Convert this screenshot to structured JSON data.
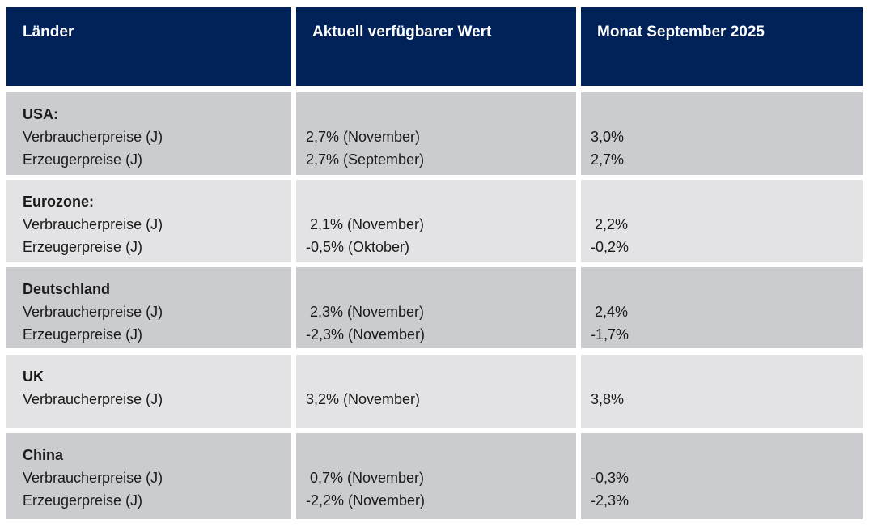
{
  "colors": {
    "header_bg": "#012159",
    "header_text": "#ffffff",
    "row_dark": "#cbccd0",
    "row_light": "#e3e3e5",
    "body_text": "#1a1a1a",
    "page_bg": "#ffffff"
  },
  "table": {
    "headers": [
      "Länder",
      "Aktuell verfügbarer Wert",
      "Monat September 2025"
    ],
    "rows": [
      {
        "country": "USA:",
        "labels": [
          "Verbraucherpreise (J)",
          "Erzeugerpreise (J)"
        ],
        "current": [
          "2,7% (November)",
          "2,7% (September)"
        ],
        "september": [
          "3,0%",
          "2,7%"
        ]
      },
      {
        "country": "Eurozone:",
        "labels": [
          "Verbraucherpreise (J)",
          "Erzeugerpreise (J)"
        ],
        "current": [
          " 2,1% (November)",
          "-0,5% (Oktober)"
        ],
        "september": [
          " 2,2%",
          "-0,2%"
        ]
      },
      {
        "country": "Deutschland",
        "labels": [
          "Verbraucherpreise (J)",
          "Erzeugerpreise (J)"
        ],
        "current": [
          " 2,3% (November)",
          "-2,3% (November)"
        ],
        "september": [
          " 2,4%",
          "-1,7%"
        ]
      },
      {
        "country": "UK",
        "labels": [
          "Verbraucherpreise (J)"
        ],
        "current": [
          "3,2% (November)"
        ],
        "september": [
          "3,8%"
        ]
      },
      {
        "country": "China",
        "labels": [
          "Verbraucherpreise (J)",
          "Erzeugerpreise (J)"
        ],
        "current": [
          " 0,7% (November)",
          "-2,2% (November)"
        ],
        "september": [
          "-0,3%",
          "-2,3%"
        ]
      }
    ]
  },
  "chart_data": {
    "type": "table",
    "columns": [
      "Länder",
      "Aktuell verfügbarer Wert",
      "Monat September 2025"
    ],
    "rows": [
      [
        "USA: Verbraucherpreise (J)",
        "2,7% (November)",
        "3,0%"
      ],
      [
        "USA: Erzeugerpreise (J)",
        "2,7% (September)",
        "2,7%"
      ],
      [
        "Eurozone: Verbraucherpreise (J)",
        "2,1% (November)",
        "2,2%"
      ],
      [
        "Eurozone: Erzeugerpreise (J)",
        "-0,5% (Oktober)",
        "-0,2%"
      ],
      [
        "Deutschland Verbraucherpreise (J)",
        "2,3% (November)",
        "2,4%"
      ],
      [
        "Deutschland Erzeugerpreise (J)",
        "-2,3% (November)",
        "-1,7%"
      ],
      [
        "UK Verbraucherpreise (J)",
        "3,2% (November)",
        "3,8%"
      ],
      [
        "China Verbraucherpreise (J)",
        "0,7% (November)",
        "-0,3%"
      ],
      [
        "China Erzeugerpreise (J)",
        "-2,2% (November)",
        "-2,3%"
      ]
    ]
  }
}
